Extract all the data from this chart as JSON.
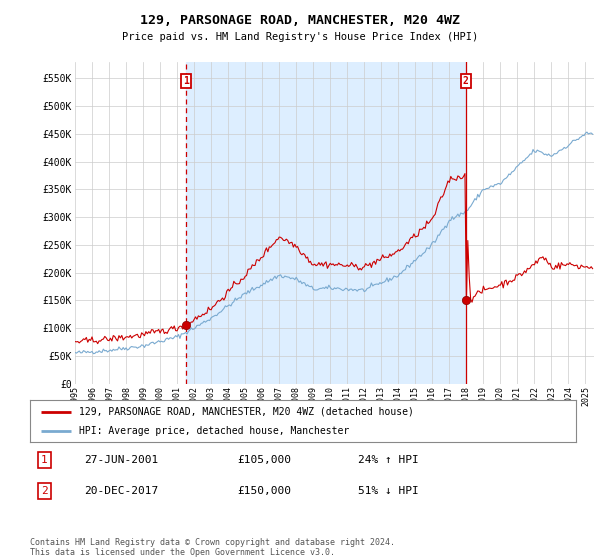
{
  "title": "129, PARSONAGE ROAD, MANCHESTER, M20 4WZ",
  "subtitle": "Price paid vs. HM Land Registry's House Price Index (HPI)",
  "ylabel_ticks": [
    "£0",
    "£50K",
    "£100K",
    "£150K",
    "£200K",
    "£250K",
    "£300K",
    "£350K",
    "£400K",
    "£450K",
    "£500K",
    "£550K"
  ],
  "ytick_vals": [
    0,
    50000,
    100000,
    150000,
    200000,
    250000,
    300000,
    350000,
    400000,
    450000,
    500000,
    550000
  ],
  "ylim": [
    0,
    580000
  ],
  "xlim_start": 1995.0,
  "xlim_end": 2025.5,
  "sale1_date": "27-JUN-2001",
  "sale1_x": 2001.5,
  "sale1_price": 105000,
  "sale1_pct": "24% ↑ HPI",
  "sale2_date": "20-DEC-2017",
  "sale2_x": 2017.96,
  "sale2_price": 150000,
  "sale2_pct": "51% ↓ HPI",
  "line_color_property": "#cc0000",
  "line_color_hpi": "#7aaad0",
  "legend_label_property": "129, PARSONAGE ROAD, MANCHESTER, M20 4WZ (detached house)",
  "legend_label_hpi": "HPI: Average price, detached house, Manchester",
  "footer": "Contains HM Land Registry data © Crown copyright and database right 2024.\nThis data is licensed under the Open Government Licence v3.0.",
  "background_color": "#ffffff",
  "grid_color": "#cccccc",
  "shade_color": "#ddeeff",
  "sale1_vline_color": "#cc0000",
  "sale2_vline_color": "#cc0000",
  "badge_edgecolor": "#cc0000",
  "badge_facecolor": "#ffffff",
  "badge_textcolor": "#cc0000"
}
